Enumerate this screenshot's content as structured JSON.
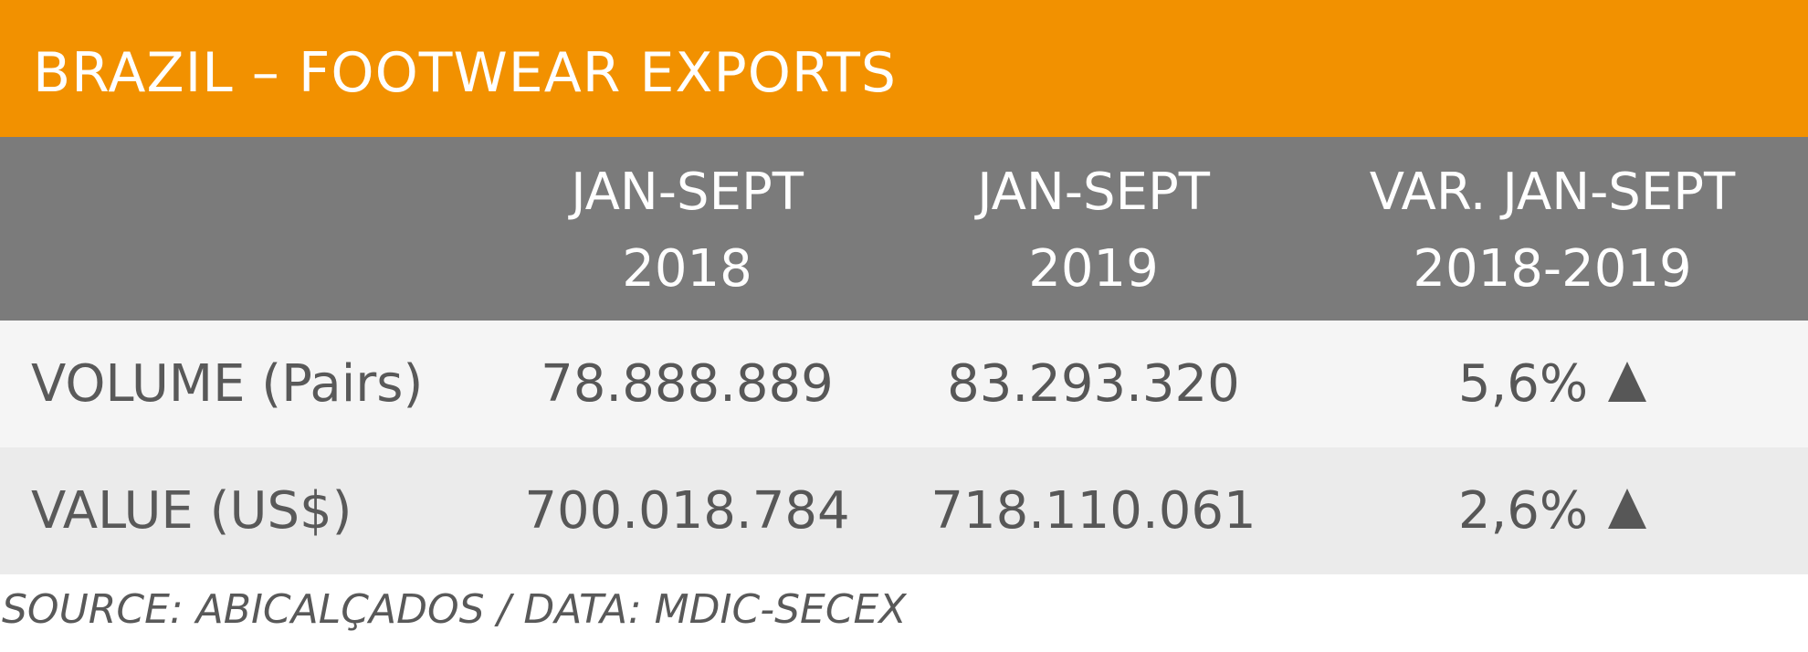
{
  "title": "BRAZIL – FOOTWEAR EXPORTS",
  "colors": {
    "title_bar": "#f29100",
    "header_bar": "#7b7b7b",
    "row_light": "#f5f5f5",
    "row_dark": "#ebebeb"
  },
  "header": {
    "columns": [
      {
        "line1": "JAN-SEPT",
        "line2": "2018"
      },
      {
        "line1": "JAN-SEPT",
        "line2": "2019"
      },
      {
        "line1": "VAR. JAN-SEPT",
        "line2": "2018-2019"
      }
    ]
  },
  "rows": [
    {
      "label": "VOLUME (Pairs)",
      "v2018": "78.888.889",
      "v2019": "83.293.320",
      "variation": "5,6%",
      "trend_icon": "triangle-up"
    },
    {
      "label": "VALUE (US$)",
      "v2018": "700.018.784",
      "v2019": "718.110.061",
      "variation": "2,6%",
      "trend_icon": "triangle-up"
    }
  ],
  "source": "SOURCE: ABICALÇADOS / DATA: MDIC-SECEX"
}
